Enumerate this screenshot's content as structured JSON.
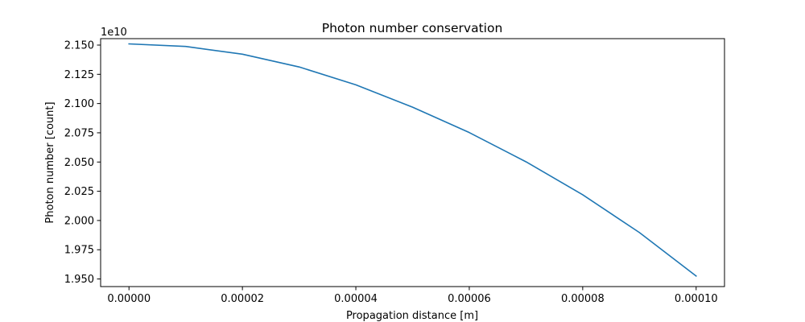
{
  "chart_data": {
    "type": "line",
    "title": "Photon number conservation",
    "xlabel": "Propagation distance [m]",
    "ylabel": "Photon number [count]",
    "y_offset_label": "1e10",
    "xlim": [
      -5e-06,
      0.000105
    ],
    "ylim": [
      1.9435,
      2.1555
    ],
    "xticks": [
      0.0,
      2e-05,
      4e-05,
      6e-05,
      8e-05,
      0.0001
    ],
    "xtick_labels": [
      "0.00000",
      "0.00002",
      "0.00004",
      "0.00006",
      "0.00008",
      "0.00010"
    ],
    "yticks": [
      1.95,
      1.975,
      2.0,
      2.025,
      2.05,
      2.075,
      2.1,
      2.125,
      2.15
    ],
    "ytick_labels": [
      "1.950",
      "1.975",
      "2.000",
      "2.025",
      "2.050",
      "2.075",
      "2.100",
      "2.125",
      "2.150"
    ],
    "grid": false,
    "series": [
      {
        "color": "#1f77b4",
        "x": [
          0.0,
          1e-05,
          2e-05,
          3e-05,
          4e-05,
          5e-05,
          6e-05,
          7e-05,
          8e-05,
          9e-05,
          0.0001
        ],
        "y": [
          2.151,
          2.1488,
          2.1422,
          2.1313,
          2.116,
          2.0969,
          2.0752,
          2.0502,
          2.022,
          1.9897,
          1.9525
        ]
      }
    ]
  }
}
